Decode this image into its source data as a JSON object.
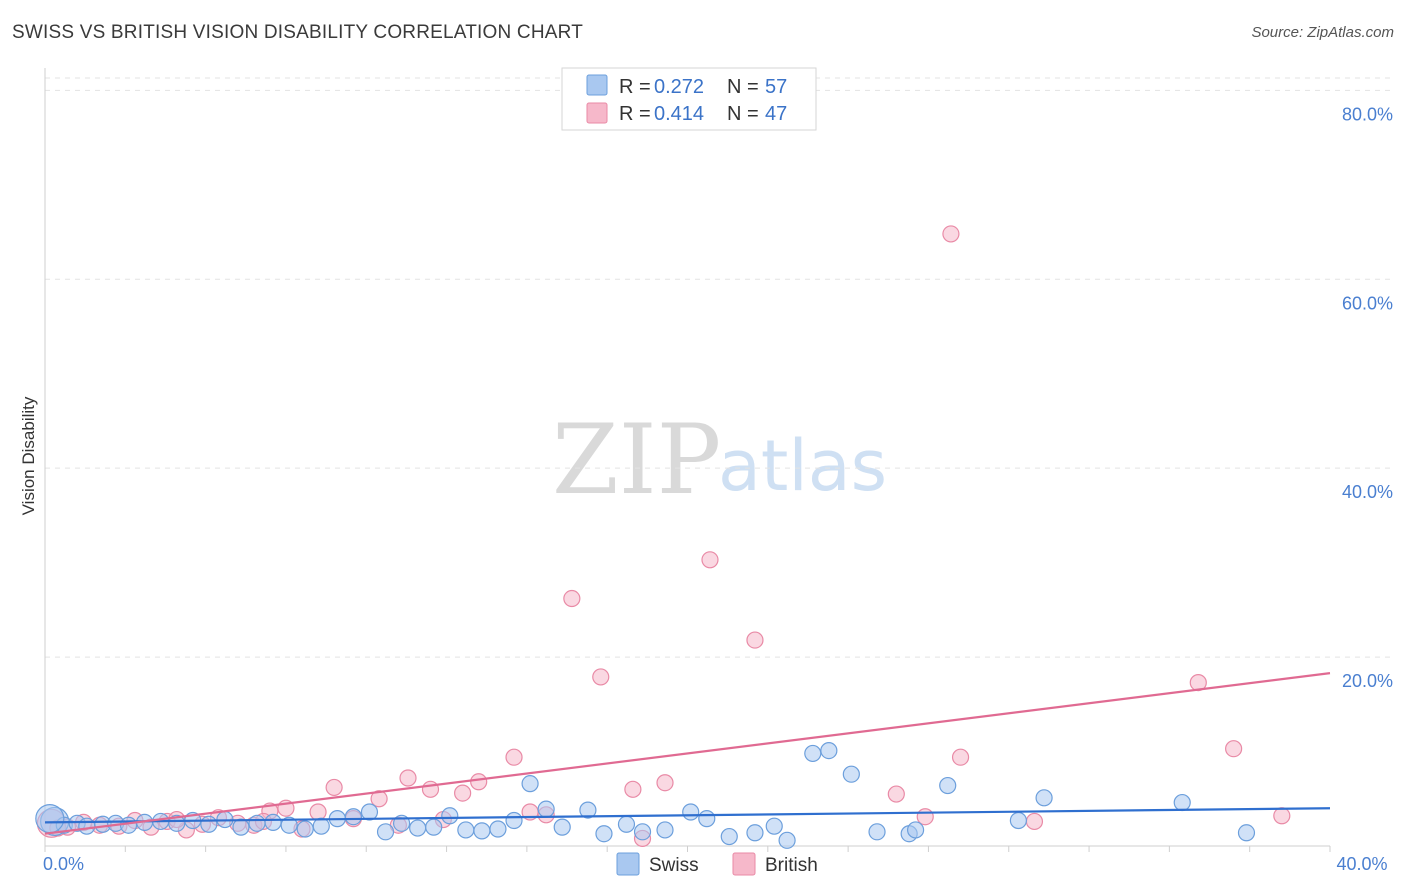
{
  "header": {
    "title": "SWISS VS BRITISH VISION DISABILITY CORRELATION CHART",
    "source": "Source: ZipAtlas.com"
  },
  "watermark": {
    "zip": "ZIP",
    "atlas": "atlas"
  },
  "legend_top": {
    "rows": [
      {
        "r_label": "R =",
        "r_value": "0.272",
        "n_label": "N =",
        "n_value": "57",
        "color": "#a9c8f0"
      },
      {
        "r_label": "R =",
        "r_value": "0.414",
        "n_label": "N =",
        "n_value": "47",
        "color": "#f6b8ca"
      }
    ]
  },
  "legend_bottom": {
    "items": [
      {
        "label": "Swiss",
        "color": "#a9c8f0"
      },
      {
        "label": "British",
        "color": "#f6b8ca"
      }
    ]
  },
  "colors": {
    "swiss_fill": "#a9c8f0",
    "swiss_stroke": "#6c9fdc",
    "swiss_line": "#2f6fcf",
    "british_fill": "#f6b8ca",
    "british_stroke": "#e98aa6",
    "british_line": "#e06a92",
    "grid": "#e3e3e3",
    "tick_text": "#4a7fd0"
  },
  "chart_data": {
    "type": "scatter",
    "title": "SWISS VS BRITISH VISION DISABILITY CORRELATION CHART",
    "xlabel": "",
    "ylabel": "Vision Disability",
    "xlim": [
      0,
      40
    ],
    "ylim": [
      0,
      83
    ],
    "x_ticks": [
      {
        "value": 0,
        "label": "0.0%"
      },
      {
        "value": 40,
        "label": "40.0%"
      }
    ],
    "y_ticks": [
      {
        "value": 20,
        "label": "20.0%"
      },
      {
        "value": 40,
        "label": "40.0%"
      },
      {
        "value": 60,
        "label": "60.0%"
      },
      {
        "value": 80,
        "label": "80.0%"
      }
    ],
    "grid": true,
    "legend_position": "top-center",
    "series": [
      {
        "name": "Swiss",
        "r": 0.272,
        "n": 57,
        "trend": [
          [
            0,
            2.5
          ],
          [
            40,
            4.0
          ]
        ],
        "points": [
          [
            0.3,
            2.6
          ],
          [
            0.6,
            2.2
          ],
          [
            1.0,
            2.4
          ],
          [
            1.3,
            2.1
          ],
          [
            1.8,
            2.3
          ],
          [
            2.2,
            2.4
          ],
          [
            2.6,
            2.2
          ],
          [
            3.1,
            2.5
          ],
          [
            3.6,
            2.6
          ],
          [
            4.1,
            2.4
          ],
          [
            4.6,
            2.7
          ],
          [
            5.1,
            2.3
          ],
          [
            5.6,
            2.8
          ],
          [
            6.1,
            2.0
          ],
          [
            6.6,
            2.4
          ],
          [
            7.1,
            2.5
          ],
          [
            7.6,
            2.2
          ],
          [
            8.1,
            1.8
          ],
          [
            8.6,
            2.1
          ],
          [
            9.1,
            2.9
          ],
          [
            9.6,
            3.1
          ],
          [
            10.1,
            3.6
          ],
          [
            10.6,
            1.5
          ],
          [
            11.1,
            2.4
          ],
          [
            11.6,
            1.9
          ],
          [
            12.1,
            2.0
          ],
          [
            12.6,
            3.2
          ],
          [
            13.1,
            1.7
          ],
          [
            13.6,
            1.6
          ],
          [
            14.1,
            1.8
          ],
          [
            14.6,
            2.7
          ],
          [
            15.1,
            6.6
          ],
          [
            15.6,
            3.9
          ],
          [
            16.1,
            2.0
          ],
          [
            16.9,
            3.8
          ],
          [
            17.4,
            1.3
          ],
          [
            18.1,
            2.3
          ],
          [
            18.6,
            1.5
          ],
          [
            19.3,
            1.7
          ],
          [
            20.1,
            3.6
          ],
          [
            20.6,
            2.9
          ],
          [
            21.3,
            1.0
          ],
          [
            22.1,
            1.4
          ],
          [
            22.7,
            2.1
          ],
          [
            23.1,
            0.6
          ],
          [
            23.9,
            9.8
          ],
          [
            24.4,
            10.1
          ],
          [
            25.1,
            7.6
          ],
          [
            25.9,
            1.5
          ],
          [
            26.9,
            1.3
          ],
          [
            27.1,
            1.7
          ],
          [
            28.1,
            6.4
          ],
          [
            30.3,
            2.7
          ],
          [
            31.1,
            5.1
          ],
          [
            35.4,
            4.6
          ],
          [
            37.4,
            1.4
          ],
          [
            0.15,
            2.9
          ]
        ]
      },
      {
        "name": "British",
        "r": 0.414,
        "n": 47,
        "trend": [
          [
            0,
            1.3
          ],
          [
            40,
            18.3
          ]
        ],
        "points": [
          [
            0.2,
            2.4
          ],
          [
            0.7,
            2.0
          ],
          [
            1.2,
            2.5
          ],
          [
            1.7,
            2.2
          ],
          [
            2.3,
            2.1
          ],
          [
            2.8,
            2.7
          ],
          [
            3.3,
            2.0
          ],
          [
            3.8,
            2.6
          ],
          [
            4.4,
            1.7
          ],
          [
            4.9,
            2.3
          ],
          [
            5.4,
            3.0
          ],
          [
            6.0,
            2.4
          ],
          [
            6.5,
            2.2
          ],
          [
            7.0,
            3.7
          ],
          [
            7.5,
            4.0
          ],
          [
            8.0,
            1.8
          ],
          [
            8.5,
            3.6
          ],
          [
            9.0,
            6.2
          ],
          [
            9.6,
            2.9
          ],
          [
            10.4,
            5.0
          ],
          [
            11.0,
            2.2
          ],
          [
            11.3,
            7.2
          ],
          [
            12.0,
            6.0
          ],
          [
            12.4,
            2.8
          ],
          [
            13.0,
            5.6
          ],
          [
            13.5,
            6.8
          ],
          [
            14.6,
            9.4
          ],
          [
            15.1,
            3.6
          ],
          [
            15.6,
            3.3
          ],
          [
            16.4,
            26.2
          ],
          [
            17.3,
            17.9
          ],
          [
            18.3,
            6.0
          ],
          [
            18.6,
            0.8
          ],
          [
            19.3,
            6.7
          ],
          [
            20.7,
            30.3
          ],
          [
            22.1,
            21.8
          ],
          [
            26.5,
            5.5
          ],
          [
            27.4,
            3.1
          ],
          [
            28.2,
            64.8
          ],
          [
            28.5,
            9.4
          ],
          [
            30.8,
            2.6
          ],
          [
            35.9,
            17.3
          ],
          [
            37.0,
            10.3
          ],
          [
            38.5,
            3.2
          ],
          [
            4.1,
            2.8
          ],
          [
            6.8,
            2.6
          ],
          [
            0.4,
            1.9
          ]
        ]
      }
    ]
  }
}
